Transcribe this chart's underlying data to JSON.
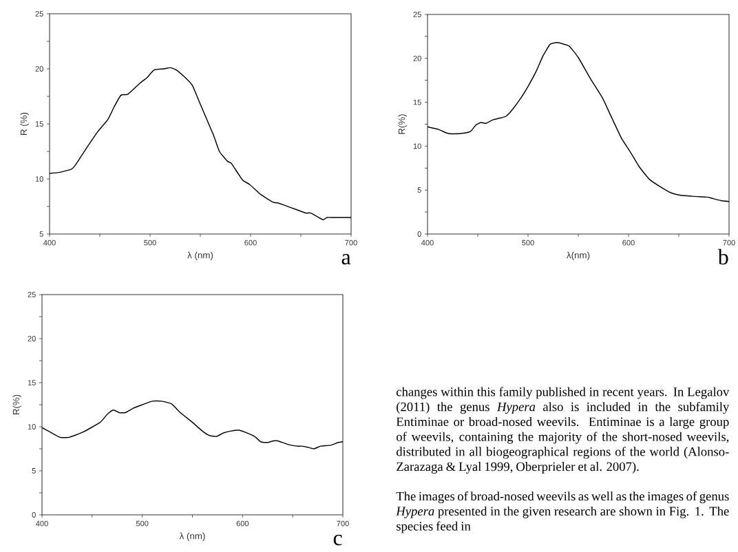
{
  "chart_data": [
    {
      "type": "line",
      "xlabel": "λ (nm)",
      "ylabel": "R (%)",
      "color": "#000000",
      "annotations": [
        "a"
      ],
      "x": [
        400,
        410,
        422,
        426,
        436,
        448,
        458,
        464,
        471,
        478,
        490,
        497,
        504,
        514,
        520,
        526,
        535,
        542,
        549,
        563,
        569,
        577,
        581,
        592,
        599,
        610,
        622,
        628,
        634,
        646,
        655,
        660,
        672,
        676,
        683,
        700
      ],
      "values": [
        10.5,
        10.6,
        10.9,
        11.3,
        12.7,
        14.3,
        15.4,
        16.5,
        17.6,
        17.7,
        18.7,
        19.2,
        19.9,
        20.0,
        20.1,
        19.9,
        19.2,
        18.5,
        17.0,
        14.0,
        12.5,
        11.6,
        11.4,
        9.9,
        9.5,
        8.6,
        7.9,
        7.8,
        7.6,
        7.2,
        6.9,
        6.9,
        6.3,
        6.5,
        6.5,
        6.5
      ],
      "xlim": [
        400,
        700
      ],
      "ylim": [
        5,
        25
      ],
      "xticks": [
        400,
        {
          "value": 450,
          "label": null
        },
        500,
        {
          "value": 550,
          "label": null
        },
        600,
        {
          "value": 650,
          "label": null
        },
        700
      ],
      "yticks": [
        5,
        {
          "value": 7.5,
          "label": null
        },
        10,
        {
          "value": 12.5,
          "label": null
        },
        15,
        {
          "value": 17.5,
          "label": null
        },
        20,
        {
          "value": 22.5,
          "label": null
        },
        25
      ]
    },
    {
      "type": "line",
      "xlabel": "λ(nm)",
      "ylabel": "R(%)",
      "color": "#000000",
      "annotations": [
        "b"
      ],
      "x": [
        400,
        411,
        419,
        425,
        437,
        443,
        448,
        453,
        458,
        465,
        472,
        478,
        484,
        493,
        500,
        508,
        515,
        522,
        529,
        536,
        541,
        550,
        562,
        574,
        581,
        593,
        602,
        611,
        621,
        630,
        642,
        652,
        663,
        678,
        682,
        692,
        700
      ],
      "values": [
        12.2,
        11.9,
        11.5,
        11.4,
        11.5,
        11.7,
        12.4,
        12.7,
        12.6,
        13.0,
        13.2,
        13.4,
        14.1,
        15.5,
        16.8,
        18.5,
        20.3,
        21.6,
        21.8,
        21.6,
        21.4,
        20.1,
        17.7,
        15.5,
        13.8,
        10.9,
        9.3,
        7.6,
        6.2,
        5.5,
        4.7,
        4.4,
        4.3,
        4.2,
        4.1,
        3.8,
        3.7
      ],
      "xlim": [
        400,
        700
      ],
      "ylim": [
        0,
        25
      ],
      "xticks": [
        400,
        {
          "value": 450,
          "label": null
        },
        500,
        {
          "value": 550,
          "label": null
        },
        600,
        {
          "value": 650,
          "label": null
        },
        700
      ],
      "yticks": [
        0,
        {
          "value": 2.5,
          "label": null
        },
        5,
        {
          "value": 7.5,
          "label": null
        },
        10,
        {
          "value": 12.5,
          "label": null
        },
        15,
        {
          "value": 17.5,
          "label": null
        },
        20,
        {
          "value": 22.5,
          "label": null
        },
        25
      ]
    },
    {
      "type": "line",
      "xlabel": "λ (nm)",
      "ylabel": "R(%)",
      "color": "#000000",
      "annotations": [
        "c"
      ],
      "x": [
        400,
        408,
        418,
        427,
        441,
        458,
        465,
        471,
        477,
        483,
        491,
        500,
        510,
        519,
        529,
        538,
        550,
        560,
        567,
        574,
        581,
        588,
        596,
        602,
        612,
        618,
        624,
        631,
        635,
        645,
        654,
        659,
        664,
        671,
        678,
        688,
        695,
        700
      ],
      "values": [
        9.9,
        9.4,
        8.8,
        8.8,
        9.4,
        10.5,
        11.4,
        11.9,
        11.6,
        11.6,
        12.1,
        12.5,
        12.9,
        12.9,
        12.6,
        11.6,
        10.5,
        9.5,
        9.0,
        8.9,
        9.3,
        9.5,
        9.6,
        9.4,
        8.9,
        8.3,
        8.2,
        8.4,
        8.4,
        8.0,
        7.8,
        7.8,
        7.7,
        7.5,
        7.8,
        7.9,
        8.2,
        8.3
      ],
      "xlim": [
        400,
        700
      ],
      "ylim": [
        0,
        25
      ],
      "xticks": [
        400,
        {
          "value": 450,
          "label": null
        },
        500,
        {
          "value": 550,
          "label": null
        },
        600,
        {
          "value": 650,
          "label": null
        },
        700
      ],
      "yticks": [
        0,
        {
          "value": 2.5,
          "label": null
        },
        5,
        {
          "value": 7.5,
          "label": null
        },
        10,
        {
          "value": 12.5,
          "label": null
        },
        15,
        {
          "value": 17.5,
          "label": null
        },
        20,
        {
          "value": 22.5,
          "label": null
        },
        25
      ]
    },
    {
      "type": "other",
      "annotations": [
        "changes within this family published in recent years. In Legalov (2011) the genus *Hypera* also is included in the subfamily Entiminae or broad-nosed weevils. Entiminae is a large group of weevils, containing the majority of the short-nosed weevils, distributed in all biogeographical regions of the world (Alonso-Zarazaga & Lyal 1999, Oberprieler et al. 2007).",
        "The images of broad-nosed weevils as well as the images of genus *Hypera* presented in the given research are shown in Fig. 1. The species feed in"
      ]
    }
  ]
}
